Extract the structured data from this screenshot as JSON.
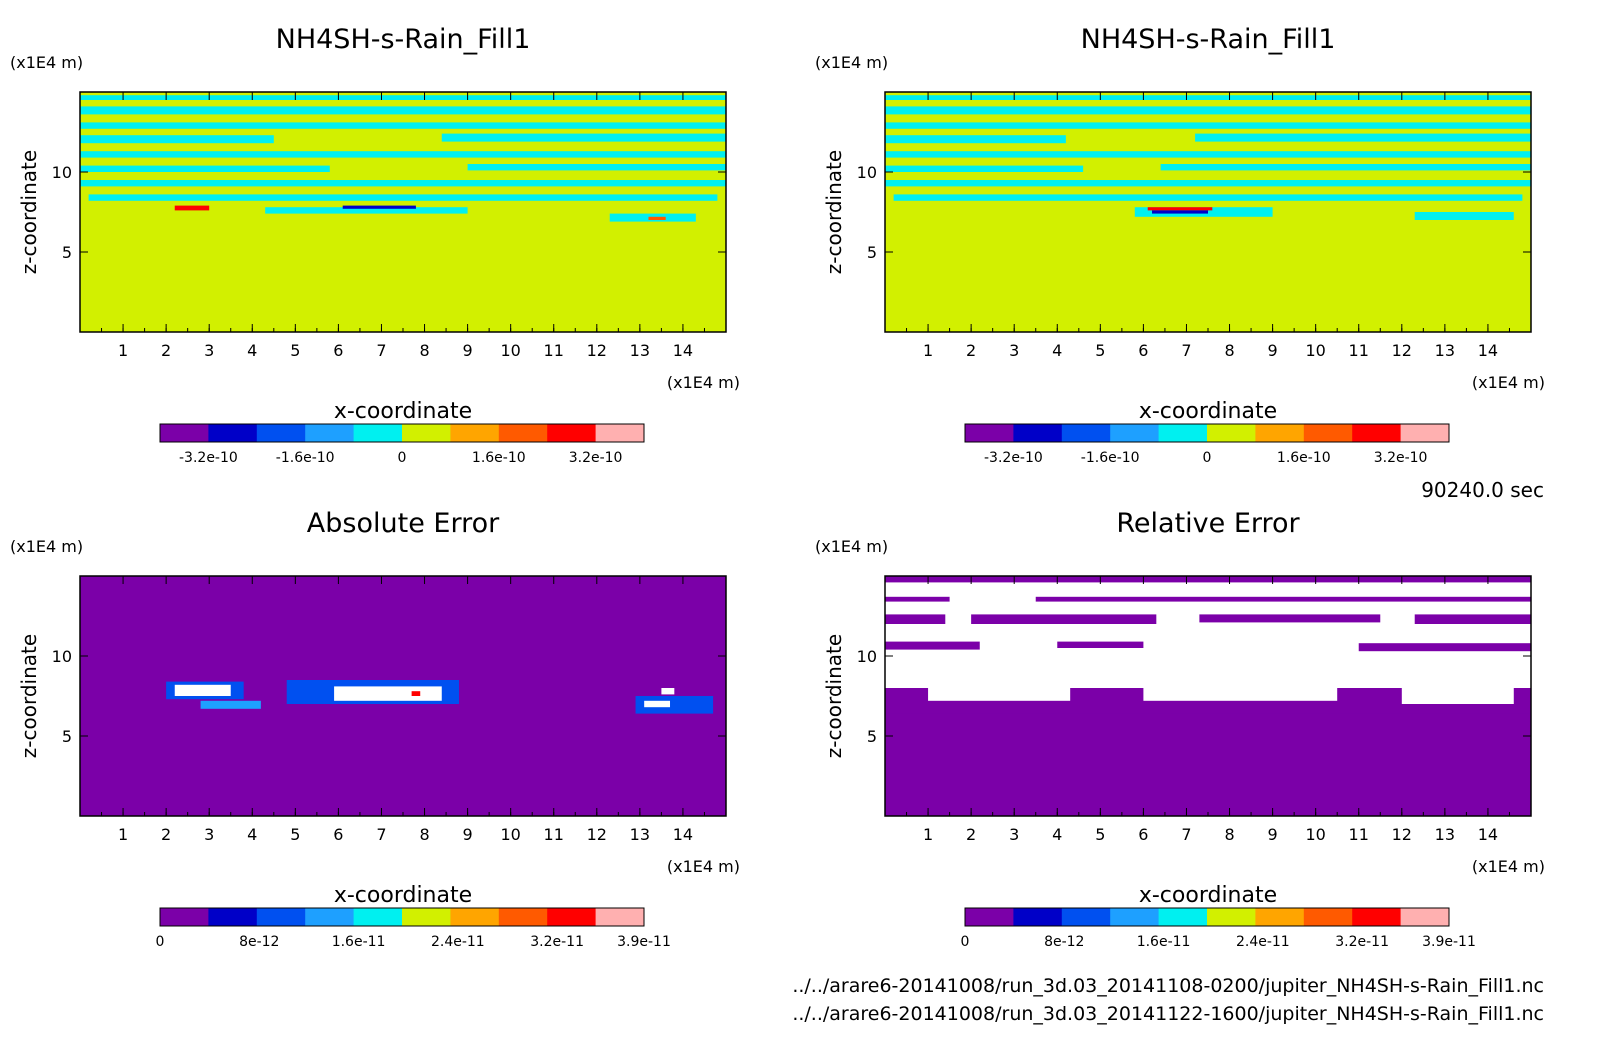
{
  "footer": {
    "time": "90240.0 sec",
    "file_lines": [
      "../../arare6-20141008/run_3d.03_20141108-0200/jupiter_NH4SH-s-Rain_Fill1.nc",
      "../../arare6-20141008/run_3d.03_20141122-1600/jupiter_NH4SH-s-Rain_Fill1.nc"
    ]
  },
  "colors": {
    "palette11": [
      "#7b00a8",
      "#0000c8",
      "#0050f0",
      "#1ea0ff",
      "#00f0f0",
      "#d2f000",
      "#ffa500",
      "#ff5a00",
      "#ff0000",
      "#ffb0b0"
    ],
    "empty": "#ffffff"
  },
  "chart_data": [
    {
      "type": "heatmap",
      "title": "NH4SH-s-Rain_Fill1",
      "xlabel": "x-coordinate",
      "ylabel": "z-coordinate",
      "x_unit": "(x1E4 m)",
      "y_unit": "(x1E4 m)",
      "xlim": [
        0,
        15
      ],
      "ylim": [
        0,
        15
      ],
      "x_ticks": [
        1,
        2,
        3,
        4,
        5,
        6,
        7,
        8,
        9,
        10,
        11,
        12,
        13,
        14
      ],
      "y_ticks": [
        5,
        10
      ],
      "colorbar": {
        "min": -4e-10,
        "max": 4e-10,
        "levels": 10,
        "tick_values": [
          -3.2e-10,
          -1.6e-10,
          0,
          1.6e-10,
          3.2e-10
        ],
        "tick_labels": [
          "-3.2e-10",
          "-1.6e-10",
          "0",
          "1.6e-10",
          "3.2e-10"
        ]
      },
      "background_value_level": 5,
      "bands": [
        {
          "x0": 0.0,
          "x1": 15.0,
          "y0": 14.5,
          "y1": 14.8,
          "level": 4
        },
        {
          "x0": 0.0,
          "x1": 15.0,
          "y0": 13.6,
          "y1": 14.1,
          "level": 4
        },
        {
          "x0": 0.0,
          "x1": 15.0,
          "y0": 12.7,
          "y1": 13.1,
          "level": 4
        },
        {
          "x0": 0.0,
          "x1": 4.5,
          "y0": 11.8,
          "y1": 12.3,
          "level": 4
        },
        {
          "x0": 8.4,
          "x1": 15.0,
          "y0": 11.9,
          "y1": 12.4,
          "level": 4
        },
        {
          "x0": 0.0,
          "x1": 15.0,
          "y0": 10.9,
          "y1": 11.3,
          "level": 4
        },
        {
          "x0": 0.0,
          "x1": 5.8,
          "y0": 10.0,
          "y1": 10.4,
          "level": 4
        },
        {
          "x0": 9.0,
          "x1": 15.0,
          "y0": 10.1,
          "y1": 10.5,
          "level": 4
        },
        {
          "x0": 0.0,
          "x1": 15.0,
          "y0": 9.1,
          "y1": 9.5,
          "level": 4
        },
        {
          "x0": 0.2,
          "x1": 14.8,
          "y0": 8.2,
          "y1": 8.6,
          "level": 4
        },
        {
          "x0": 4.3,
          "x1": 9.0,
          "y0": 7.4,
          "y1": 7.8,
          "level": 4
        },
        {
          "x0": 12.3,
          "x1": 14.3,
          "y0": 6.9,
          "y1": 7.4,
          "level": 4
        },
        {
          "x0": 2.2,
          "x1": 3.0,
          "y0": 7.6,
          "y1": 7.9,
          "level": 8
        },
        {
          "x0": 6.1,
          "x1": 7.8,
          "y0": 7.7,
          "y1": 7.9,
          "level": 1
        },
        {
          "x0": 13.2,
          "x1": 13.6,
          "y0": 7.0,
          "y1": 7.2,
          "level": 7
        }
      ]
    },
    {
      "type": "heatmap",
      "title": "NH4SH-s-Rain_Fill1",
      "xlabel": "x-coordinate",
      "ylabel": "z-coordinate",
      "x_unit": "(x1E4 m)",
      "y_unit": "(x1E4 m)",
      "xlim": [
        0,
        15
      ],
      "ylim": [
        0,
        15
      ],
      "x_ticks": [
        1,
        2,
        3,
        4,
        5,
        6,
        7,
        8,
        9,
        10,
        11,
        12,
        13,
        14
      ],
      "y_ticks": [
        5,
        10
      ],
      "colorbar": {
        "min": -4e-10,
        "max": 4e-10,
        "levels": 10,
        "tick_values": [
          -3.2e-10,
          -1.6e-10,
          0,
          1.6e-10,
          3.2e-10
        ],
        "tick_labels": [
          "-3.2e-10",
          "-1.6e-10",
          "0",
          "1.6e-10",
          "3.2e-10"
        ]
      },
      "background_value_level": 5,
      "bands": [
        {
          "x0": 0.0,
          "x1": 15.0,
          "y0": 14.5,
          "y1": 14.8,
          "level": 4
        },
        {
          "x0": 0.0,
          "x1": 15.0,
          "y0": 13.6,
          "y1": 14.1,
          "level": 4
        },
        {
          "x0": 0.0,
          "x1": 15.0,
          "y0": 12.7,
          "y1": 13.1,
          "level": 4
        },
        {
          "x0": 0.0,
          "x1": 4.2,
          "y0": 11.8,
          "y1": 12.3,
          "level": 4
        },
        {
          "x0": 7.2,
          "x1": 15.0,
          "y0": 11.9,
          "y1": 12.4,
          "level": 4
        },
        {
          "x0": 0.0,
          "x1": 15.0,
          "y0": 10.9,
          "y1": 11.3,
          "level": 4
        },
        {
          "x0": 0.0,
          "x1": 4.6,
          "y0": 10.0,
          "y1": 10.4,
          "level": 4
        },
        {
          "x0": 6.4,
          "x1": 15.0,
          "y0": 10.1,
          "y1": 10.5,
          "level": 4
        },
        {
          "x0": 0.0,
          "x1": 15.0,
          "y0": 9.1,
          "y1": 9.5,
          "level": 4
        },
        {
          "x0": 0.2,
          "x1": 14.8,
          "y0": 8.2,
          "y1": 8.6,
          "level": 4
        },
        {
          "x0": 5.8,
          "x1": 9.0,
          "y0": 7.2,
          "y1": 7.8,
          "level": 4
        },
        {
          "x0": 12.3,
          "x1": 14.6,
          "y0": 7.0,
          "y1": 7.5,
          "level": 4
        },
        {
          "x0": 6.1,
          "x1": 7.6,
          "y0": 7.6,
          "y1": 7.8,
          "level": 8
        },
        {
          "x0": 6.2,
          "x1": 7.5,
          "y0": 7.4,
          "y1": 7.6,
          "level": 1
        }
      ]
    },
    {
      "type": "heatmap",
      "title": "Absolute Error",
      "xlabel": "x-coordinate",
      "ylabel": "z-coordinate",
      "x_unit": "(x1E4 m)",
      "y_unit": "(x1E4 m)",
      "xlim": [
        0,
        15
      ],
      "ylim": [
        0,
        15
      ],
      "x_ticks": [
        1,
        2,
        3,
        4,
        5,
        6,
        7,
        8,
        9,
        10,
        11,
        12,
        13,
        14
      ],
      "y_ticks": [
        5,
        10
      ],
      "colorbar": {
        "min": 0,
        "max": 3.9e-11,
        "levels": 10,
        "tick_values": [
          0,
          8e-12,
          1.6e-11,
          2.4e-11,
          3.2e-11,
          3.9e-11
        ],
        "tick_labels": [
          "0",
          "8e-12",
          "1.6e-11",
          "2.4e-11",
          "3.2e-11",
          "3.9e-11"
        ]
      },
      "background_value_level": 0,
      "bands": [
        {
          "x0": 2.0,
          "x1": 3.8,
          "y0": 7.3,
          "y1": 8.4,
          "level": 2
        },
        {
          "x0": 2.2,
          "x1": 3.5,
          "y0": 7.5,
          "y1": 8.2,
          "level": -1
        },
        {
          "x0": 2.8,
          "x1": 4.2,
          "y0": 6.7,
          "y1": 7.2,
          "level": 3
        },
        {
          "x0": 4.8,
          "x1": 8.8,
          "y0": 7.0,
          "y1": 8.5,
          "level": 2
        },
        {
          "x0": 5.9,
          "x1": 8.4,
          "y0": 7.2,
          "y1": 8.1,
          "level": -1
        },
        {
          "x0": 7.7,
          "x1": 7.9,
          "y0": 7.5,
          "y1": 7.8,
          "level": 8
        },
        {
          "x0": 12.9,
          "x1": 14.7,
          "y0": 6.4,
          "y1": 7.5,
          "level": 2
        },
        {
          "x0": 13.1,
          "x1": 13.7,
          "y0": 6.8,
          "y1": 7.2,
          "level": -1
        },
        {
          "x0": 13.5,
          "x1": 13.8,
          "y0": 7.6,
          "y1": 8.0,
          "level": -1
        }
      ]
    },
    {
      "type": "heatmap",
      "title": "Relative Error",
      "xlabel": "x-coordinate",
      "ylabel": "z-coordinate",
      "x_unit": "(x1E4 m)",
      "y_unit": "(x1E4 m)",
      "xlim": [
        0,
        15
      ],
      "ylim": [
        0,
        15
      ],
      "x_ticks": [
        1,
        2,
        3,
        4,
        5,
        6,
        7,
        8,
        9,
        10,
        11,
        12,
        13,
        14
      ],
      "y_ticks": [
        5,
        10
      ],
      "colorbar": {
        "min": 0,
        "max": 3.9e-11,
        "levels": 10,
        "tick_values": [
          0,
          8e-12,
          1.6e-11,
          2.4e-11,
          3.2e-11,
          3.9e-11
        ],
        "tick_labels": [
          "0",
          "8e-12",
          "1.6e-11",
          "2.4e-11",
          "3.2e-11",
          "3.9e-11"
        ]
      },
      "background_value_level": -1,
      "bands": [
        {
          "x0": 0.0,
          "x1": 15.0,
          "y0": 0.0,
          "y1": 6.5,
          "level": 0
        },
        {
          "x0": 0.0,
          "x1": 15.0,
          "y0": 14.6,
          "y1": 15.0,
          "level": 0
        },
        {
          "x0": 0.0,
          "x1": 1.5,
          "y0": 13.4,
          "y1": 13.7,
          "level": 0
        },
        {
          "x0": 3.5,
          "x1": 15.0,
          "y0": 13.4,
          "y1": 13.7,
          "level": 0
        },
        {
          "x0": 0.0,
          "x1": 1.4,
          "y0": 12.0,
          "y1": 12.6,
          "level": 0
        },
        {
          "x0": 2.0,
          "x1": 6.3,
          "y0": 12.0,
          "y1": 12.6,
          "level": 0
        },
        {
          "x0": 7.3,
          "x1": 11.5,
          "y0": 12.1,
          "y1": 12.6,
          "level": 0
        },
        {
          "x0": 12.3,
          "x1": 15.0,
          "y0": 12.0,
          "y1": 12.6,
          "level": 0
        },
        {
          "x0": 0.0,
          "x1": 2.2,
          "y0": 10.4,
          "y1": 10.9,
          "level": 0
        },
        {
          "x0": 4.0,
          "x1": 6.0,
          "y0": 10.5,
          "y1": 10.9,
          "level": 0
        },
        {
          "x0": 11.0,
          "x1": 15.0,
          "y0": 10.3,
          "y1": 10.8,
          "level": 0
        },
        {
          "x0": 0.0,
          "x1": 15.0,
          "y0": 6.4,
          "y1": 8.0,
          "level": 0
        }
      ],
      "holes": [
        {
          "x0": 1.0,
          "x1": 4.3,
          "y0": 7.2,
          "y1": 8.2
        },
        {
          "x0": 6.0,
          "x1": 10.5,
          "y0": 7.2,
          "y1": 8.2
        },
        {
          "x0": 12.0,
          "x1": 14.6,
          "y0": 7.0,
          "y1": 8.2
        }
      ]
    }
  ]
}
